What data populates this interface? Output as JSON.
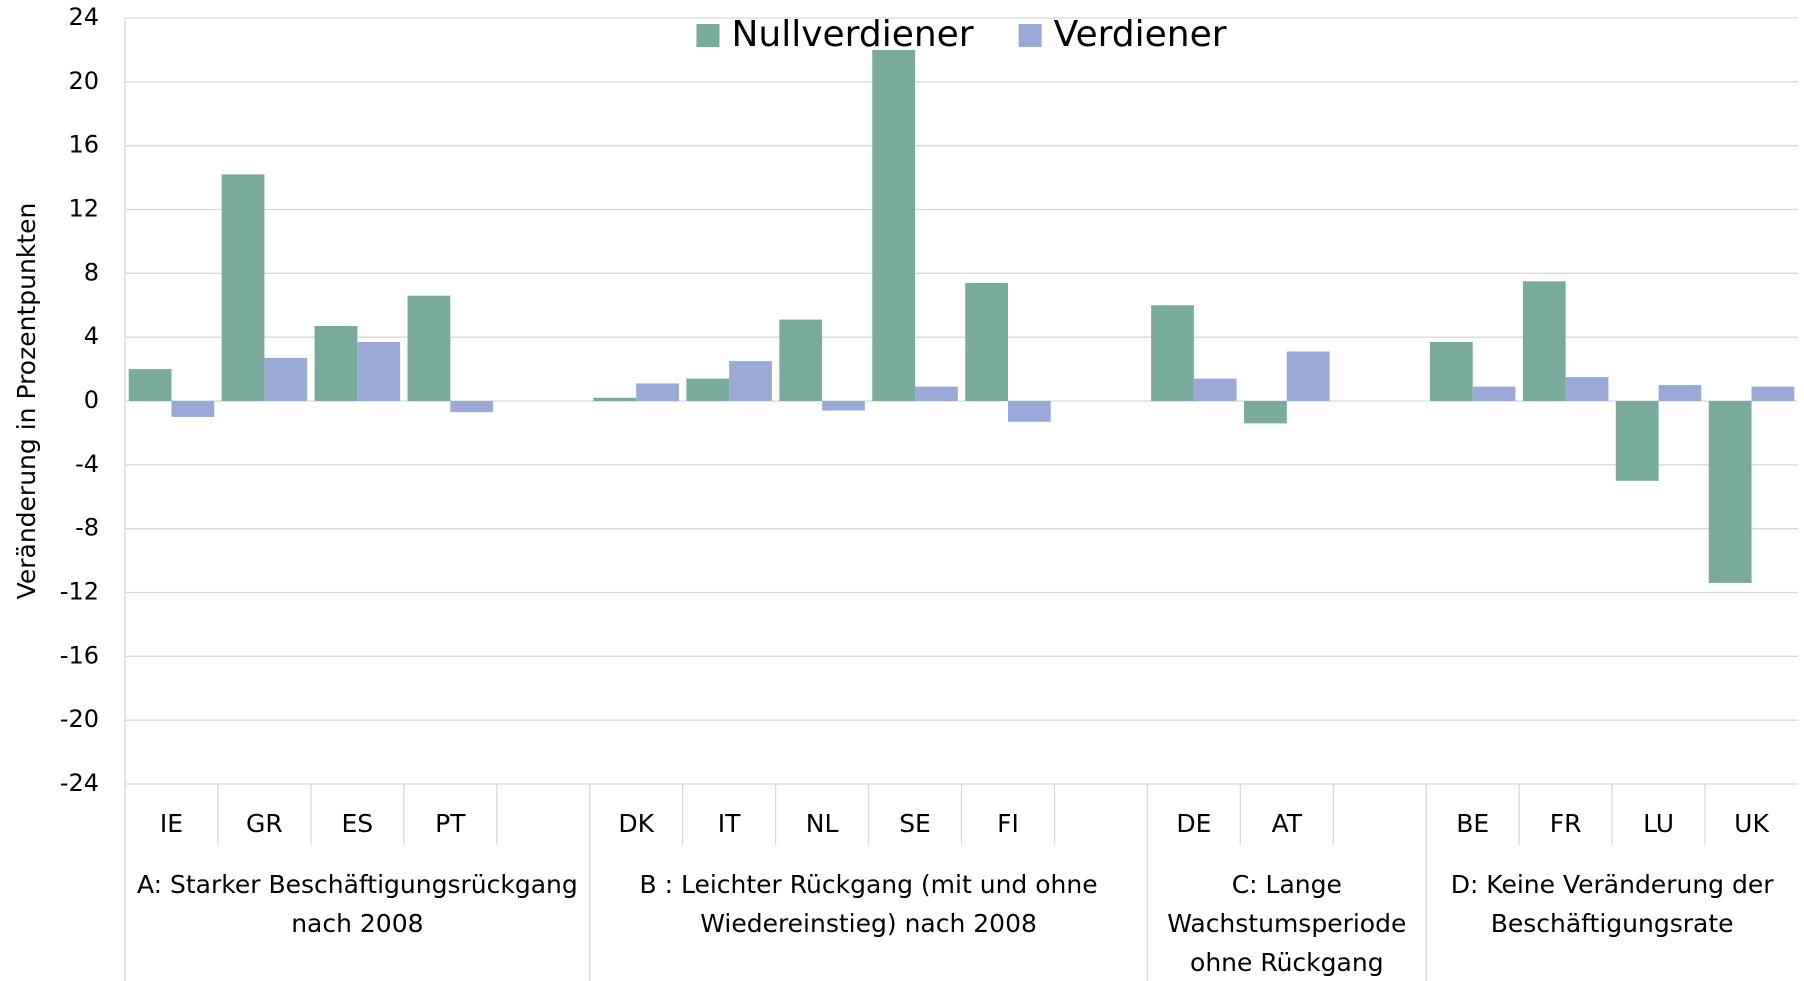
{
  "chart_data": {
    "type": "bar",
    "y_label": "Veränderung in Prozentpunkten",
    "categories": [
      "IE",
      "GR",
      "ES",
      "PT",
      null,
      "DK",
      "IT",
      "NL",
      "SE",
      "FI",
      null,
      "DE",
      "AT",
      null,
      "BE",
      "FR",
      "LU",
      "UK"
    ],
    "group_labels": [
      [
        "A: Starker Beschäftigungsrückgang",
        "nach 2008"
      ],
      [
        "B : Leichter Rückgang (mit und ohne",
        "Wiedereinstieg) nach 2008"
      ],
      [
        "C: Lange",
        "Wachstumsperiode",
        "ohne Rückgang"
      ],
      [
        "D: Keine Veränderung der",
        "Beschäftigungsrate"
      ]
    ],
    "series": [
      {
        "name": "Nullverdiener",
        "color": "#78ab9b",
        "values": [
          2.0,
          14.2,
          4.7,
          6.6,
          null,
          0.2,
          1.4,
          5.1,
          22.0,
          7.4,
          null,
          6.0,
          -1.4,
          null,
          3.7,
          7.5,
          -5.0,
          -11.4
        ]
      },
      {
        "name": "Verdiener",
        "color": "#9aa9d7",
        "values": [
          -1.0,
          2.7,
          3.7,
          -0.7,
          null,
          1.1,
          2.5,
          -0.6,
          0.9,
          -1.3,
          null,
          1.4,
          3.1,
          null,
          0.9,
          1.5,
          1.0,
          0.9
        ]
      }
    ],
    "ylim": [
      -24,
      24
    ],
    "yticks": [
      -24,
      -20,
      -16,
      -12,
      -8,
      -4,
      0,
      4,
      8,
      12,
      16,
      20,
      24
    ],
    "grid": true,
    "legend": "top-center"
  }
}
